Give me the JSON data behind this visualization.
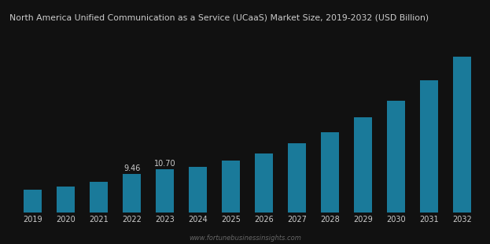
{
  "years": [
    "2019",
    "2020",
    "2021",
    "2022",
    "2023",
    "2024",
    "2025",
    "2026",
    "2027",
    "2028",
    "2029",
    "2030",
    "2031",
    "2032"
  ],
  "values": [
    5.5,
    6.4,
    7.6,
    9.46,
    10.7,
    11.2,
    12.8,
    14.5,
    17.0,
    19.8,
    23.5,
    27.5,
    32.5,
    38.5
  ],
  "bar_color": "#1a7a9a",
  "background_color": "#111111",
  "title": "North America Unified Communication as a Service (UCaaS) Market Size, 2019-2032 (USD Billion)",
  "title_color": "#cccccc",
  "title_fontsize": 7.8,
  "tick_color": "#cccccc",
  "watermark": "www.fortunebusinessinsights.com",
  "watermark_color": "#666666",
  "labeled_bars": {
    "2022": "9.46",
    "2023": "10.70"
  },
  "label_fontsize": 7.0,
  "bar_width": 0.55
}
